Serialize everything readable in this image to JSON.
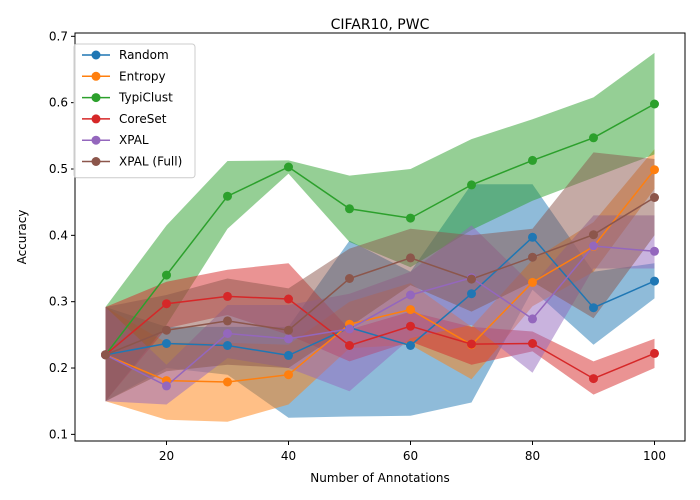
{
  "chart_data": {
    "type": "line",
    "title": "CIFAR10, PWC",
    "xlabel": "Number of Annotations",
    "ylabel": "Accuracy",
    "xlim": [
      5,
      105
    ],
    "ylim": [
      0.09,
      0.705
    ],
    "xticks": [
      20,
      40,
      60,
      80,
      100
    ],
    "xtick_labels": [
      "20",
      "40",
      "60",
      "80",
      "100"
    ],
    "yticks": [
      0.1,
      0.2,
      0.3,
      0.4,
      0.5,
      0.6,
      0.7
    ],
    "ytick_labels": [
      "0.1",
      "0.2",
      "0.3",
      "0.4",
      "0.5",
      "0.6",
      "0.7"
    ],
    "legend_position": "top-left",
    "x": [
      10,
      20,
      30,
      40,
      50,
      60,
      70,
      80,
      90,
      100
    ],
    "series": [
      {
        "name": "Random",
        "color": "#1f77b4",
        "values": [
          0.22,
          0.237,
          0.234,
          0.219,
          0.261,
          0.234,
          0.312,
          0.397,
          0.291,
          0.331
        ],
        "lower": [
          0.15,
          0.2,
          0.19,
          0.125,
          0.127,
          0.128,
          0.148,
          0.318,
          0.235,
          0.305
        ],
        "upper": [
          0.292,
          0.262,
          0.262,
          0.262,
          0.392,
          0.345,
          0.477,
          0.477,
          0.345,
          0.358
        ]
      },
      {
        "name": "Entropy",
        "color": "#ff7f0e",
        "values": [
          0.22,
          0.181,
          0.179,
          0.19,
          0.266,
          0.288,
          0.235,
          0.329,
          0.383,
          0.499
        ],
        "lower": [
          0.15,
          0.122,
          0.119,
          0.145,
          0.23,
          0.235,
          0.183,
          0.293,
          0.345,
          0.47
        ],
        "upper": [
          0.292,
          0.238,
          0.238,
          0.235,
          0.3,
          0.328,
          0.262,
          0.363,
          0.42,
          0.53
        ]
      },
      {
        "name": "TypiClust",
        "color": "#2ca02c",
        "values": [
          0.22,
          0.34,
          0.459,
          0.503,
          0.44,
          0.426,
          0.476,
          0.513,
          0.547,
          0.598
        ],
        "lower": [
          0.15,
          0.265,
          0.41,
          0.493,
          0.39,
          0.352,
          0.408,
          0.452,
          0.487,
          0.522
        ],
        "upper": [
          0.292,
          0.415,
          0.512,
          0.513,
          0.49,
          0.5,
          0.545,
          0.575,
          0.608,
          0.675
        ]
      },
      {
        "name": "CoreSet",
        "color": "#d62728",
        "values": [
          0.22,
          0.297,
          0.308,
          0.304,
          0.234,
          0.263,
          0.236,
          0.237,
          0.184,
          0.222
        ],
        "lower": [
          0.15,
          0.26,
          0.28,
          0.25,
          0.21,
          0.24,
          0.205,
          0.225,
          0.16,
          0.2
        ],
        "upper": [
          0.292,
          0.33,
          0.348,
          0.358,
          0.258,
          0.285,
          0.262,
          0.255,
          0.21,
          0.244
        ]
      },
      {
        "name": "XPAL",
        "color": "#9467bd",
        "values": [
          0.22,
          0.173,
          0.252,
          0.244,
          0.259,
          0.31,
          0.336,
          0.274,
          0.384,
          0.376
        ],
        "lower": [
          0.15,
          0.145,
          0.215,
          0.2,
          0.165,
          0.245,
          0.265,
          0.193,
          0.35,
          0.35
        ],
        "upper": [
          0.292,
          0.205,
          0.295,
          0.295,
          0.312,
          0.345,
          0.415,
          0.325,
          0.43,
          0.43
        ]
      },
      {
        "name": "XPAL (Full)",
        "color": "#8c564b",
        "values": [
          0.22,
          0.257,
          0.271,
          0.257,
          0.335,
          0.366,
          0.334,
          0.367,
          0.401,
          0.457
        ],
        "lower": [
          0.15,
          0.195,
          0.205,
          0.2,
          0.262,
          0.325,
          0.285,
          0.33,
          0.275,
          0.4
        ],
        "upper": [
          0.292,
          0.31,
          0.335,
          0.32,
          0.38,
          0.41,
          0.4,
          0.41,
          0.525,
          0.515
        ]
      }
    ]
  }
}
